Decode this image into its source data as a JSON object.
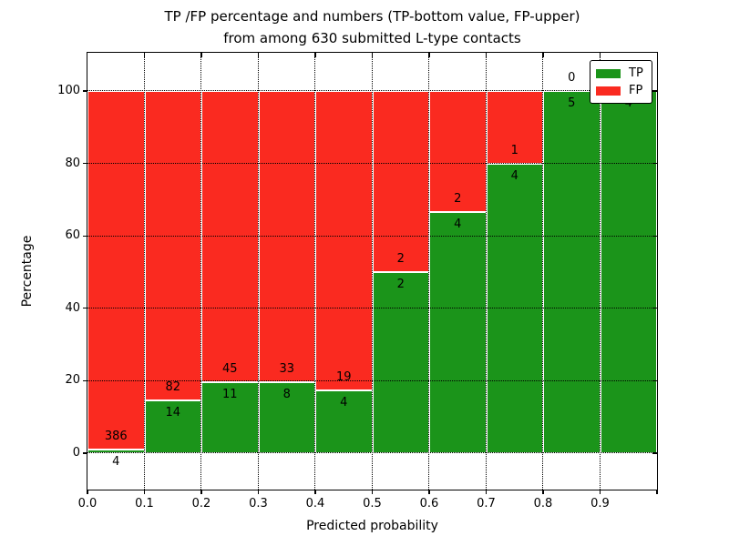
{
  "title": {
    "line1": "TP /FP percentage and numbers (TP-bottom value, FP-upper)",
    "line2": "from among 630 submitted L-type contacts"
  },
  "chart_data": {
    "type": "bar",
    "stacked": true,
    "normalized": "percent",
    "title": "TP /FP percentage and numbers (TP-bottom value, FP-upper) from among 630 submitted L-type contacts",
    "xlabel": "Predicted probability",
    "ylabel": "Percentage",
    "total_contacts": 630,
    "bins": [
      "0.0-0.1",
      "0.1-0.2",
      "0.2-0.3",
      "0.3-0.4",
      "0.4-0.5",
      "0.5-0.6",
      "0.6-0.7",
      "0.7-0.8",
      "0.8-0.9",
      "0.9-1.0"
    ],
    "series": [
      {
        "name": "TP",
        "color": "#1b941a",
        "values": [
          4,
          14,
          11,
          8,
          4,
          2,
          4,
          4,
          5,
          4
        ]
      },
      {
        "name": "FP",
        "color": "#fa2a20",
        "values": [
          386,
          82,
          45,
          33,
          19,
          2,
          2,
          1,
          0,
          0
        ]
      }
    ],
    "tp_percent_of_bin": [
      1.03,
      14.58,
      19.64,
      19.51,
      17.39,
      50.0,
      66.67,
      80.0,
      100.0,
      100.0
    ],
    "x_tick_labels": [
      "0.0",
      "0.1",
      "0.2",
      "0.3",
      "0.4",
      "0.5",
      "0.6",
      "0.7",
      "0.8",
      "0.9"
    ],
    "y_ticks": [
      0,
      20,
      40,
      60,
      80,
      100
    ],
    "xlim": [
      0.0,
      1.0
    ],
    "ylim": [
      -10.5,
      110.5
    ],
    "grid": "dotted",
    "legend_position": "upper right",
    "bar_edge_color": "#ffffff",
    "annotation_note": "TP count below segment boundary, FP count above segment boundary"
  }
}
